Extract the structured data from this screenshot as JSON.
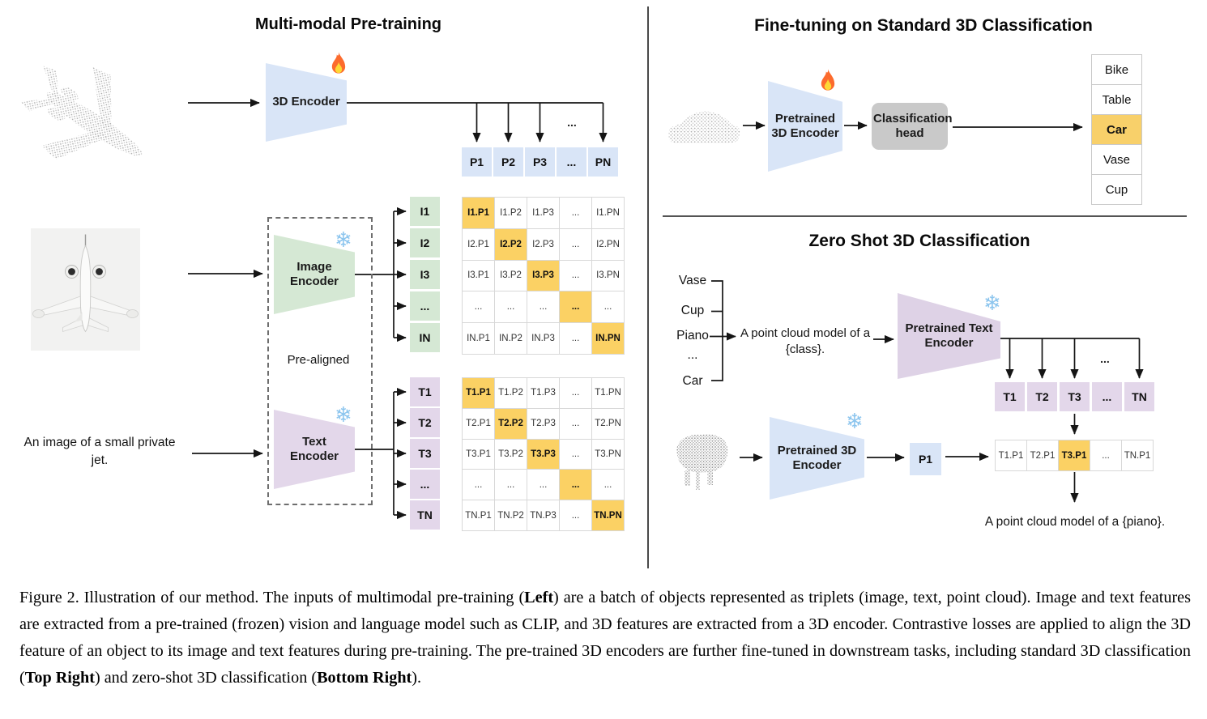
{
  "colors": {
    "encoder_blue": "#d9e5f7",
    "encoder_green": "#d5e8d4",
    "encoder_purple": "#e3d7ea",
    "highlight_orange": "#fbd164",
    "class_highlight": "#f8d06a",
    "head_gray": "#c9c9c9"
  },
  "icons": {
    "trainable": "flame-icon",
    "frozen": "snowflake-icon",
    "frozen_glyph": "❄"
  },
  "left": {
    "title": "Multi-modal Pre-training",
    "encoder_3d_label": "3D Encoder",
    "p_row": [
      "P1",
      "P2",
      "P3",
      "...",
      "PN"
    ],
    "p_row_ellipsis": "...",
    "image_encoder_label": "Image Encoder",
    "text_encoder_label": "Text Encoder",
    "pre_aligned_label": "Pre-aligned",
    "text_input": "An image of a small private jet.",
    "image_features": [
      "I1",
      "I2",
      "I3",
      "...",
      "IN"
    ],
    "text_features": [
      "T1",
      "T2",
      "T3",
      "...",
      "TN"
    ],
    "image_matrix": {
      "rows": [
        [
          "I1.P1",
          "I1.P2",
          "I1.P3",
          "...",
          "I1.PN"
        ],
        [
          "I2.P1",
          "I2.P2",
          "I2.P3",
          "...",
          "I2.PN"
        ],
        [
          "I3.P1",
          "I3.P2",
          "I3.P3",
          "...",
          "I3.PN"
        ],
        [
          "...",
          "...",
          "...",
          "...",
          "..."
        ],
        [
          "IN.P1",
          "IN.P2",
          "IN.P3",
          "...",
          "IN.PN"
        ]
      ],
      "highlight": "diagonal"
    },
    "text_matrix": {
      "rows": [
        [
          "T1.P1",
          "T1.P2",
          "T1.P3",
          "...",
          "T1.PN"
        ],
        [
          "T2.P1",
          "T2.P2",
          "T2.P3",
          "...",
          "T2.PN"
        ],
        [
          "T3.P1",
          "T3.P2",
          "T3.P3",
          "...",
          "T3.PN"
        ],
        [
          "...",
          "...",
          "...",
          "...",
          "..."
        ],
        [
          "TN.P1",
          "TN.P2",
          "TN.P3",
          "...",
          "TN.PN"
        ]
      ],
      "highlight": "diagonal"
    }
  },
  "top_right": {
    "title": "Fine-tuning on Standard 3D Classification",
    "encoder_label": "Pretrained 3D Encoder",
    "head_label": "Classification head",
    "classes": [
      "Bike",
      "Table",
      "Car",
      "Vase",
      "Cup"
    ],
    "highlight_index": 2
  },
  "bottom_right": {
    "title": "Zero Shot 3D Classification",
    "query_classes": [
      "Vase",
      "Cup",
      "Piano",
      "...",
      "Car"
    ],
    "prompt": "A point cloud model of a {class}.",
    "text_encoder_label": "Pretrained Text Encoder",
    "t_row": [
      "T1",
      "T2",
      "T3",
      "...",
      "TN"
    ],
    "t_row_ellipsis": "...",
    "encoder_3d_label": "Pretrained 3D Encoder",
    "p1_label": "P1",
    "result_row": [
      "T1.P1",
      "T2.P1",
      "T3.P1",
      "...",
      "TN.P1"
    ],
    "result_highlight_index": 2,
    "result_prompt": "A point cloud model of a {piano}."
  },
  "caption": {
    "runs": [
      {
        "t": "Figure 2. Illustration of our method. The inputs of multimodal pre-training (",
        "b": 0
      },
      {
        "t": "Left",
        "b": 1
      },
      {
        "t": ") are a batch of objects represented as triplets (image, text, point cloud). Image and text features are extracted from a pre-trained (frozen) vision and language model such as CLIP, and 3D features are extracted from a 3D encoder. Contrastive losses are applied to align the 3D feature of an object to its image and text features during pre-training. The pre-trained 3D encoders are further fine-tuned in downstream tasks, including standard 3D classification (",
        "b": 0
      },
      {
        "t": "Top Right",
        "b": 1
      },
      {
        "t": ") and zero-shot 3D classification (",
        "b": 0
      },
      {
        "t": "Bottom Right",
        "b": 1
      },
      {
        "t": ").",
        "b": 0
      }
    ]
  }
}
